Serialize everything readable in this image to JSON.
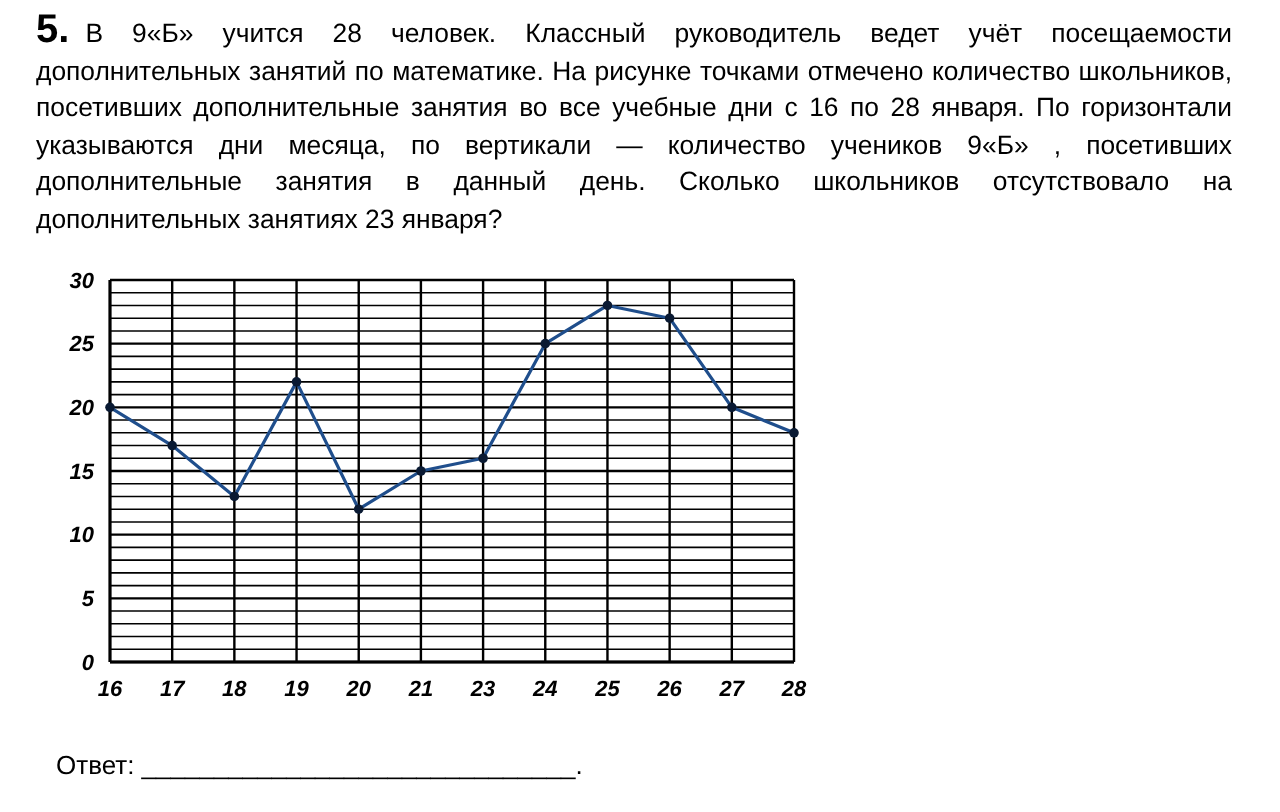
{
  "chart_data": {
    "type": "line",
    "title": "5.",
    "subtitle": "В 9«Б» учится 28 человек. Классный руководитель ведет учёт посещаемости дополнительных занятий по математике. На рисунке точками отмечено количество школьников, посетивших дополнительные занятия во все учебные дни с 16 по 28 января. По горизонтали указываются дни месяца, по вертикали — количество учеников 9«Б» , посетивших дополнительные занятия в данный день. Сколько школьников отсутствовало на дополнительных занятиях 23 января?",
    "categories": [
      "16",
      "17",
      "18",
      "19",
      "20",
      "21",
      "23",
      "24",
      "25",
      "26",
      "27",
      "28"
    ],
    "series": [
      {
        "color": "#1f4e8c",
        "values": [
          20,
          17,
          13,
          22,
          12,
          15,
          16,
          25,
          28,
          27,
          20,
          18
        ]
      }
    ],
    "ylim": [
      0,
      30
    ],
    "yticks": [
      0,
      {
        "value": 1,
        "label": null
      },
      {
        "value": 2,
        "label": null
      },
      {
        "value": 3,
        "label": null
      },
      {
        "value": 4,
        "label": null
      },
      5,
      {
        "value": 6,
        "label": null
      },
      {
        "value": 7,
        "label": null
      },
      {
        "value": 8,
        "label": null
      },
      {
        "value": 9,
        "label": null
      },
      10,
      {
        "value": 11,
        "label": null
      },
      {
        "value": 12,
        "label": null
      },
      {
        "value": 13,
        "label": null
      },
      {
        "value": 14,
        "label": null
      },
      15,
      {
        "value": 16,
        "label": null
      },
      {
        "value": 17,
        "label": null
      },
      {
        "value": 18,
        "label": null
      },
      {
        "value": 19,
        "label": null
      },
      20,
      {
        "value": 21,
        "label": null
      },
      {
        "value": 22,
        "label": null
      },
      {
        "value": 23,
        "label": null
      },
      {
        "value": 24,
        "label": null
      },
      25,
      {
        "value": 26,
        "label": null
      },
      {
        "value": 27,
        "label": null
      },
      {
        "value": 28,
        "label": null
      },
      {
        "value": 29,
        "label": null
      },
      30
    ],
    "grid": true,
    "marker": "circle",
    "line_style": "solid",
    "annotations": [
      "Ответ: ______________________________."
    ]
  }
}
